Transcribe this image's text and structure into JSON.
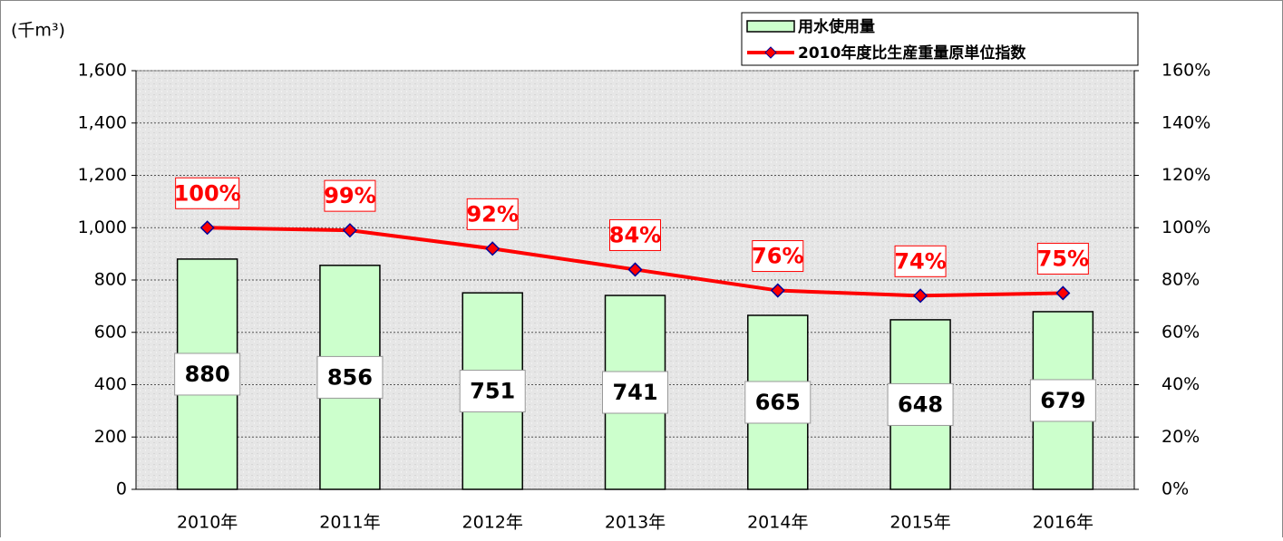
{
  "chart_data": {
    "type": "bar",
    "y_label": "(千m³)",
    "categories": [
      "2010年",
      "2011年",
      "2012年",
      "2013年",
      "2014年",
      "2015年",
      "2016年"
    ],
    "series": [
      {
        "name": "用水使用量",
        "type": "bar",
        "color": "#ccffcc",
        "values": [
          880,
          856,
          751,
          741,
          665,
          648,
          679
        ]
      },
      {
        "name": "2010年度比生産重量原単位指数",
        "type": "line",
        "axis": "y2",
        "color": "#ff0000",
        "marker_color": "#000099",
        "values": [
          100,
          99,
          92,
          84,
          76,
          74,
          75
        ],
        "value_labels": [
          "100%",
          "99%",
          "92%",
          "84%",
          "76%",
          "74%",
          "75%"
        ]
      }
    ],
    "ylim": [
      0,
      1600
    ],
    "yticks": [
      0,
      200,
      400,
      600,
      800,
      {
        "value": 1000,
        "label": "1,000"
      },
      {
        "value": 1200,
        "label": "1,200"
      },
      {
        "value": 1400,
        "label": "1,400"
      },
      {
        "value": 1600,
        "label": "1,600"
      }
    ],
    "y2lim": [
      0,
      160
    ],
    "y2ticks": [
      {
        "value": 0,
        "label": "0%"
      },
      {
        "value": 20,
        "label": "20%"
      },
      {
        "value": 40,
        "label": "40%"
      },
      {
        "value": 60,
        "label": "60%"
      },
      {
        "value": 80,
        "label": "80%"
      },
      {
        "value": 100,
        "label": "100%"
      },
      {
        "value": 120,
        "label": "120%"
      },
      {
        "value": 140,
        "label": "140%"
      },
      {
        "value": 160,
        "label": "160%"
      }
    ],
    "grid": true,
    "legend": "top-right"
  }
}
